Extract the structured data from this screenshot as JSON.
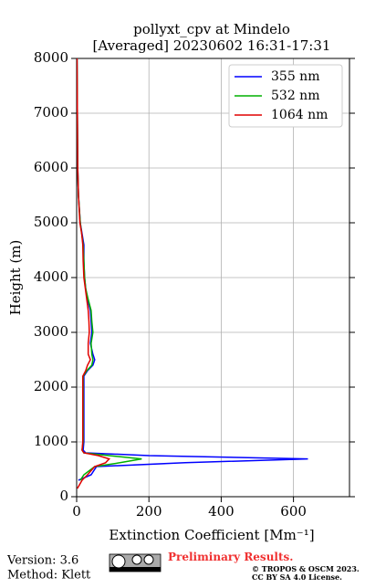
{
  "chart_data": {
    "type": "line",
    "title": "pollyxt_cpv at Mindelo",
    "subtitle": "[Averaged] 20230602 16:31-17:31",
    "x_label": "Extinction Coefficient [Mm⁻¹]",
    "y_label": "Height (m)",
    "y": [
      150,
      300,
      400,
      550,
      620,
      690,
      750,
      800,
      850,
      1000,
      1500,
      2000,
      2200,
      2300,
      2400,
      2500,
      2600,
      2800,
      3000,
      3200,
      3400,
      3600,
      3800,
      4000,
      4300,
      4600,
      4800,
      5000,
      5500,
      6000,
      7000,
      8000
    ],
    "series": [
      {
        "name": "355 nm",
        "color": "#0000ff",
        "values": [
          null,
          5,
          40,
          55,
          300,
          640,
          200,
          25,
          18,
          20,
          20,
          20,
          20,
          30,
          45,
          50,
          45,
          38,
          42,
          40,
          38,
          30,
          25,
          22,
          20,
          20,
          15,
          10,
          5,
          3,
          2,
          1
        ]
      },
      {
        "name": "532 nm",
        "color": "#00b000",
        "values": [
          null,
          10,
          20,
          50,
          120,
          180,
          90,
          20,
          15,
          18,
          18,
          18,
          18,
          28,
          42,
          45,
          42,
          40,
          45,
          42,
          40,
          32,
          25,
          22,
          20,
          18,
          14,
          10,
          5,
          3,
          2,
          1
        ]
      },
      {
        "name": "1064 nm",
        "color": "#e00000",
        "values": [
          2,
          15,
          30,
          50,
          80,
          90,
          60,
          20,
          15,
          17,
          17,
          17,
          17,
          25,
          30,
          38,
          32,
          32,
          35,
          34,
          32,
          28,
          24,
          20,
          18,
          17,
          14,
          9,
          5,
          3,
          2,
          1
        ]
      }
    ],
    "xlim": [
      0,
      755
    ],
    "xticks": [
      0,
      200,
      400,
      600
    ],
    "ylim": [
      0,
      8000
    ],
    "yticks": [
      0,
      1000,
      2000,
      3000,
      4000,
      5000,
      6000,
      7000,
      8000
    ],
    "grid": true,
    "legend": "upper right"
  },
  "footer": {
    "version": "Version: 3.6",
    "method": "Method: Klett",
    "preliminary": "Preliminary Results.",
    "copyright": "© TROPOS & OSCM 2023.",
    "license": "CC BY SA 4.0 License."
  }
}
